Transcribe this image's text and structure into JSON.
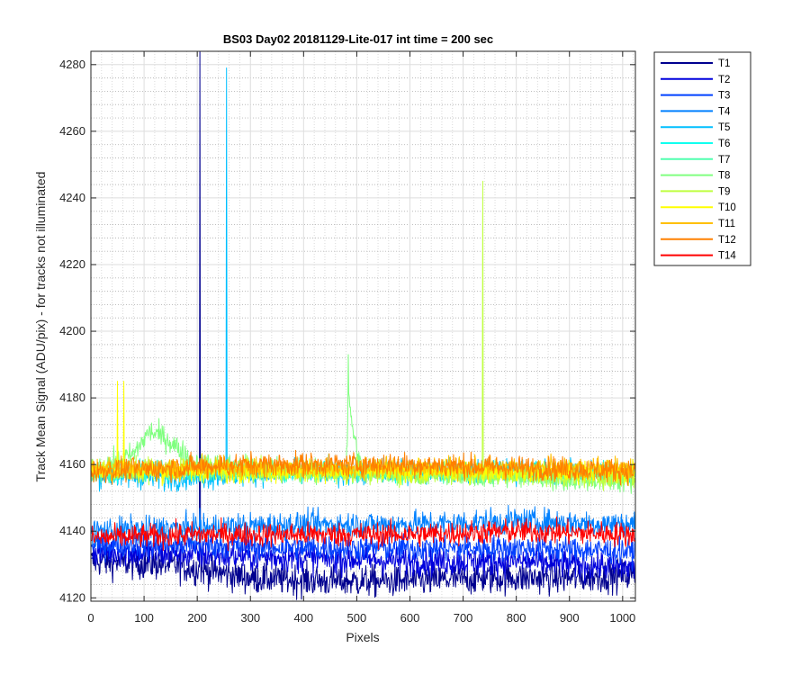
{
  "chart_data": {
    "type": "line",
    "title": "BS03 Day02 20181129-Lite-017 int time = 200 sec",
    "xlabel": "Pixels",
    "ylabel": "Track Mean Signal (ADU/pix) - for tracks not illuminated",
    "xlim": [
      0,
      1024
    ],
    "ylim": [
      4119,
      4284
    ],
    "xticks": [
      0,
      100,
      200,
      300,
      400,
      500,
      600,
      700,
      800,
      900,
      1000
    ],
    "yticks": [
      4120,
      4140,
      4160,
      4180,
      4200,
      4220,
      4240,
      4260,
      4280
    ],
    "grid": "major and minor",
    "legend_position": "outside-right",
    "series": [
      {
        "name": "T1",
        "color": "#00008f",
        "base": [
          [
            0,
            4131
          ],
          [
            150,
            4130
          ],
          [
            300,
            4126
          ],
          [
            450,
            4125
          ],
          [
            600,
            4125
          ],
          [
            750,
            4126
          ],
          [
            900,
            4126
          ],
          [
            1024,
            4127
          ]
        ],
        "noise": 2.4,
        "spikes": [
          {
            "x": 205,
            "y": 4284
          },
          {
            "x": 206,
            "y": 4145
          }
        ]
      },
      {
        "name": "T2",
        "color": "#0000dd",
        "base": [
          [
            0,
            4134
          ],
          [
            200,
            4133
          ],
          [
            400,
            4132
          ],
          [
            600,
            4131
          ],
          [
            800,
            4131
          ],
          [
            1024,
            4129
          ]
        ],
        "noise": 2.2,
        "spikes": []
      },
      {
        "name": "T3",
        "color": "#0040ff",
        "base": [
          [
            0,
            4136
          ],
          [
            200,
            4136
          ],
          [
            400,
            4135
          ],
          [
            600,
            4135
          ],
          [
            800,
            4135
          ],
          [
            1024,
            4134
          ]
        ],
        "noise": 2.0,
        "spikes": []
      },
      {
        "name": "T4",
        "color": "#0080ff",
        "base": [
          [
            0,
            4140
          ],
          [
            200,
            4141
          ],
          [
            400,
            4142
          ],
          [
            600,
            4142
          ],
          [
            800,
            4143
          ],
          [
            1024,
            4142
          ]
        ],
        "noise": 2.0,
        "spikes": []
      },
      {
        "name": "T5",
        "color": "#00bfff",
        "base": [
          [
            0,
            4157
          ],
          [
            150,
            4156
          ],
          [
            300,
            4157
          ],
          [
            600,
            4158
          ],
          [
            900,
            4158
          ],
          [
            1024,
            4157
          ]
        ],
        "noise": 1.8,
        "spikes": [
          {
            "x": 255,
            "y": 4279
          }
        ]
      },
      {
        "name": "T6",
        "color": "#10ffef",
        "base": [
          [
            0,
            4158
          ],
          [
            1024,
            4158
          ]
        ],
        "noise": 1.4,
        "spikes": []
      },
      {
        "name": "T7",
        "color": "#50ffaf",
        "base": [
          [
            0,
            4158
          ],
          [
            1024,
            4157
          ]
        ],
        "noise": 1.4,
        "spikes": []
      },
      {
        "name": "T8",
        "color": "#80ff80",
        "base": [
          [
            0,
            4158
          ],
          [
            80,
            4163
          ],
          [
            110,
            4170
          ],
          [
            140,
            4168
          ],
          [
            200,
            4160
          ],
          [
            480,
            4158
          ],
          [
            485,
            4180
          ],
          [
            495,
            4168
          ],
          [
            510,
            4158
          ],
          [
            1024,
            4155
          ]
        ],
        "noise": 1.8,
        "spikes": [
          {
            "x": 484,
            "y": 4193
          }
        ]
      },
      {
        "name": "T9",
        "color": "#bfff40",
        "base": [
          [
            0,
            4159
          ],
          [
            1024,
            4156
          ]
        ],
        "noise": 1.6,
        "spikes": [
          {
            "x": 737,
            "y": 4245
          }
        ]
      },
      {
        "name": "T10",
        "color": "#ffff00",
        "base": [
          [
            0,
            4158
          ],
          [
            1024,
            4158
          ]
        ],
        "noise": 1.6,
        "spikes": [
          {
            "x": 50,
            "y": 4185
          },
          {
            "x": 62,
            "y": 4185
          }
        ]
      },
      {
        "name": "T11",
        "color": "#ffbf00",
        "base": [
          [
            0,
            4159
          ],
          [
            1024,
            4159
          ]
        ],
        "noise": 1.6,
        "spikes": []
      },
      {
        "name": "T12",
        "color": "#ff8000",
        "base": [
          [
            0,
            4158
          ],
          [
            300,
            4160
          ],
          [
            600,
            4160
          ],
          [
            1024,
            4158
          ]
        ],
        "noise": 1.8,
        "spikes": []
      },
      {
        "name": "T14",
        "color": "#ff0000",
        "base": [
          [
            0,
            4138
          ],
          [
            200,
            4139
          ],
          [
            400,
            4139
          ],
          [
            600,
            4139
          ],
          [
            800,
            4140
          ],
          [
            1024,
            4139
          ]
        ],
        "noise": 1.8,
        "spikes": []
      }
    ]
  }
}
